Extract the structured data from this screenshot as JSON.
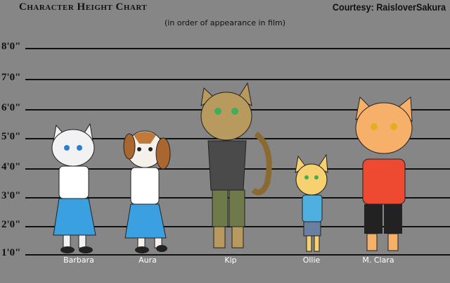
{
  "header": {
    "title": "Character Height Chart",
    "subtitle": "(in order of appearance in film)",
    "courtesy": "Courtesy: RaisloverSakura"
  },
  "height_marks": [
    "8'0\"",
    "7'0\"",
    "6'0\"",
    "5'0\"",
    "4'0\"",
    "3'0\"",
    "2'0\"",
    "1'0\""
  ],
  "characters": [
    {
      "name": "Barbara",
      "color": "#f2f2f2",
      "clothes": "#3aa0e0"
    },
    {
      "name": "Aura",
      "color": "#f5f0ea",
      "clothes": "#3aa0e0"
    },
    {
      "name": "Kip",
      "color": "#b99a5e",
      "clothes": "#4a4a4a"
    },
    {
      "name": "Ollie",
      "color": "#f7d070",
      "clothes": "#4fb0e0"
    },
    {
      "name": "M. Clara",
      "color": "#f6b06a",
      "clothes": "#ee4a32"
    }
  ]
}
